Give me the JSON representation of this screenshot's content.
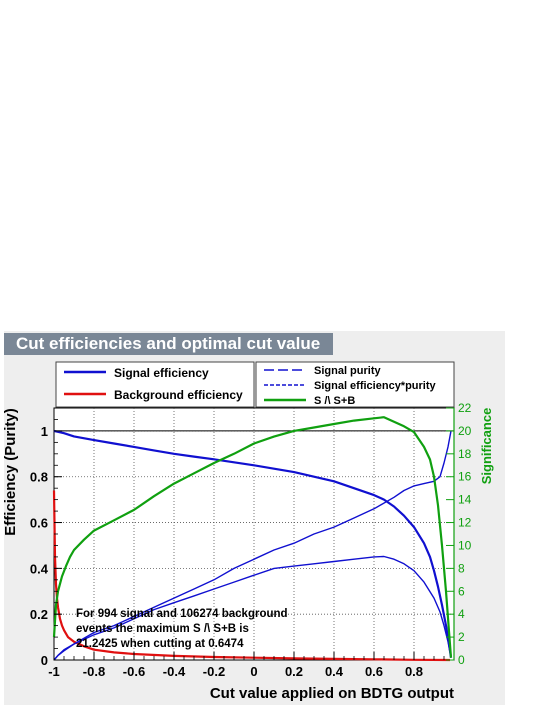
{
  "chart_data": {
    "type": "line",
    "title": "Cut efficiencies and optimal cut value",
    "xlabel": "Cut value applied on BDTG output",
    "ylabel": "Efficiency (Purity)",
    "y2label": "Significance",
    "xlim": [
      -1.0,
      1.0
    ],
    "ylim": [
      0,
      1.1
    ],
    "y2lim": [
      0,
      22.0
    ],
    "x_ticks": [
      "-1",
      "-0.8",
      "-0.6",
      "-0.4",
      "-0.2",
      "0",
      "0.2",
      "0.4",
      "0.6",
      "0.8"
    ],
    "y_ticks": [
      "0",
      "0.2",
      "0.4",
      "0.6",
      "0.8",
      "1"
    ],
    "y2_ticks": [
      "0",
      "2",
      "4",
      "6",
      "8",
      "10",
      "12",
      "14",
      "16",
      "18",
      "20",
      "22"
    ],
    "grid": true,
    "colors": {
      "signal": "#1010d0",
      "background": "#e01010",
      "significance": "#10a010",
      "y2axis": "#10a010"
    },
    "legend_left": [
      {
        "label": "Signal efficiency",
        "series": "signal_efficiency"
      },
      {
        "label": "Background efficiency",
        "series": "background_efficiency"
      }
    ],
    "legend_right": [
      {
        "label": "Signal purity",
        "series": "signal_purity"
      },
      {
        "label": "Signal efficiency*purity",
        "series": "signal_eff_purity"
      },
      {
        "label": "S /\\ S+B",
        "series": "significance"
      }
    ],
    "annotation": [
      "For 994 signal and 106274 background",
      "events the maximum S /\\ S+B is",
      "21.2425 when cutting at 0.6474"
    ],
    "series": [
      {
        "name": "Signal efficiency",
        "key": "signal_efficiency",
        "axis": "left",
        "x": [
          -1.0,
          -0.95,
          -0.9,
          -0.8,
          -0.7,
          -0.6,
          -0.5,
          -0.4,
          -0.3,
          -0.2,
          -0.1,
          0.0,
          0.1,
          0.2,
          0.3,
          0.4,
          0.5,
          0.6,
          0.65,
          0.7,
          0.75,
          0.8,
          0.85,
          0.88,
          0.9,
          0.92,
          0.94,
          0.96,
          0.975,
          0.985
        ],
        "y": [
          1.0,
          0.99,
          0.976,
          0.96,
          0.945,
          0.93,
          0.915,
          0.9,
          0.888,
          0.876,
          0.863,
          0.85,
          0.835,
          0.82,
          0.8,
          0.78,
          0.75,
          0.72,
          0.7,
          0.67,
          0.63,
          0.58,
          0.51,
          0.45,
          0.39,
          0.32,
          0.24,
          0.15,
          0.07,
          0.01
        ]
      },
      {
        "name": "Background efficiency",
        "key": "background_efficiency",
        "axis": "left",
        "x": [
          -1.0,
          -0.995,
          -0.99,
          -0.985,
          -0.98,
          -0.97,
          -0.96,
          -0.95,
          -0.93,
          -0.9,
          -0.85,
          -0.8,
          -0.7,
          -0.6,
          -0.4,
          -0.2,
          0.0,
          0.2,
          0.4,
          0.6,
          0.8,
          0.98
        ],
        "y": [
          0.74,
          0.45,
          0.33,
          0.27,
          0.23,
          0.18,
          0.15,
          0.13,
          0.1,
          0.08,
          0.06,
          0.045,
          0.033,
          0.026,
          0.018,
          0.013,
          0.01,
          0.007,
          0.005,
          0.003,
          0.001,
          0.0
        ]
      },
      {
        "name": "Signal purity",
        "key": "signal_purity",
        "axis": "left",
        "x": [
          -1.0,
          -0.98,
          -0.95,
          -0.9,
          -0.8,
          -0.7,
          -0.6,
          -0.5,
          -0.4,
          -0.3,
          -0.2,
          -0.1,
          0.0,
          0.1,
          0.2,
          0.3,
          0.4,
          0.5,
          0.6,
          0.7,
          0.75,
          0.8,
          0.85,
          0.9,
          0.93,
          0.95,
          0.97,
          0.985
        ],
        "y": [
          0.0,
          0.02,
          0.045,
          0.07,
          0.12,
          0.15,
          0.19,
          0.23,
          0.27,
          0.31,
          0.35,
          0.4,
          0.44,
          0.48,
          0.51,
          0.55,
          0.58,
          0.62,
          0.66,
          0.71,
          0.74,
          0.76,
          0.77,
          0.78,
          0.8,
          0.86,
          0.93,
          1.0
        ]
      },
      {
        "name": "Signal efficiency*purity",
        "key": "signal_eff_purity",
        "axis": "left",
        "x": [
          -1.0,
          -0.98,
          -0.95,
          -0.9,
          -0.8,
          -0.7,
          -0.6,
          -0.5,
          -0.4,
          -0.3,
          -0.2,
          -0.1,
          0.0,
          0.1,
          0.2,
          0.3,
          0.4,
          0.5,
          0.6,
          0.65,
          0.7,
          0.75,
          0.8,
          0.85,
          0.9,
          0.93,
          0.95,
          0.97,
          0.985
        ],
        "y": [
          0.0,
          0.02,
          0.04,
          0.07,
          0.11,
          0.14,
          0.18,
          0.22,
          0.25,
          0.28,
          0.31,
          0.34,
          0.37,
          0.4,
          0.41,
          0.42,
          0.43,
          0.44,
          0.45,
          0.452,
          0.44,
          0.42,
          0.39,
          0.34,
          0.27,
          0.21,
          0.15,
          0.08,
          0.01
        ]
      },
      {
        "name": "S /\\ S+B",
        "key": "significance",
        "axis": "right",
        "x": [
          -1.0,
          -0.99,
          -0.98,
          -0.96,
          -0.94,
          -0.92,
          -0.9,
          -0.85,
          -0.8,
          -0.7,
          -0.6,
          -0.5,
          -0.4,
          -0.3,
          -0.2,
          -0.1,
          0.0,
          0.1,
          0.2,
          0.3,
          0.4,
          0.5,
          0.6,
          0.65,
          0.7,
          0.75,
          0.8,
          0.85,
          0.88,
          0.9,
          0.92,
          0.94,
          0.96,
          0.975,
          0.985
        ],
        "y": [
          2.0,
          4.8,
          6.0,
          7.3,
          8.2,
          9.0,
          9.6,
          10.5,
          11.3,
          12.2,
          13.1,
          14.3,
          15.4,
          16.3,
          17.2,
          18.0,
          18.9,
          19.5,
          20.0,
          20.3,
          20.6,
          20.9,
          21.1,
          21.2,
          20.8,
          20.4,
          19.9,
          18.6,
          17.5,
          16.0,
          13.5,
          10.0,
          6.0,
          2.5,
          0.2
        ]
      }
    ]
  }
}
